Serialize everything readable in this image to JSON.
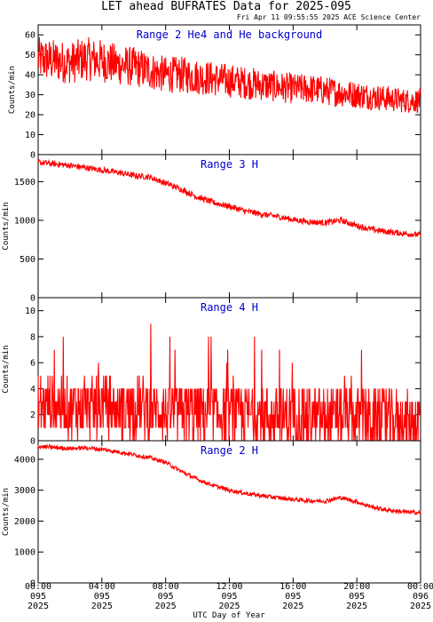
{
  "page": {
    "title": "LET ahead BUFRATES Data for 2025-095",
    "subtitle": "Fri Apr 11 09:55:55 2025 ACE Science Center",
    "xlabel": "UTC Day of Year"
  },
  "colors": {
    "line": "#ff0000",
    "panel_title": "#0000cc",
    "axis": "#000000"
  },
  "x_ticks": [
    {
      "time": "00:00",
      "doy": "095",
      "year": "2025",
      "hour": 0
    },
    {
      "time": "04:00",
      "doy": "095",
      "year": "2025",
      "hour": 4
    },
    {
      "time": "08:00",
      "doy": "095",
      "year": "2025",
      "hour": 8
    },
    {
      "time": "12:00",
      "doy": "095",
      "year": "2025",
      "hour": 12
    },
    {
      "time": "16:00",
      "doy": "095",
      "year": "2025",
      "hour": 16
    },
    {
      "time": "20:00",
      "doy": "095",
      "year": "2025",
      "hour": 20
    },
    {
      "time": "00:00",
      "doy": "096",
      "year": "2025",
      "hour": 24
    }
  ],
  "chart_data": [
    {
      "type": "line",
      "title": "Range 2 He4 and He background",
      "ylabel": "Counts/min",
      "ylim": [
        0,
        65
      ],
      "yticks": [
        0,
        10,
        20,
        30,
        40,
        50,
        60
      ],
      "x": [
        0,
        1,
        2,
        3,
        4,
        5,
        6,
        7,
        8,
        9,
        10,
        11,
        12,
        13,
        14,
        15,
        16,
        17,
        18,
        19,
        20,
        21,
        22,
        23,
        24
      ],
      "series": [
        {
          "values": [
            48,
            47,
            46,
            48,
            47,
            45,
            44,
            42,
            40,
            40,
            39,
            38,
            37,
            36,
            35,
            34,
            33,
            33,
            32,
            31,
            30,
            29,
            28,
            27,
            27
          ]
        }
      ]
    },
    {
      "type": "line",
      "title": "Range 3 H",
      "ylabel": "Counts/min",
      "ylim": [
        0,
        1850
      ],
      "yticks": [
        0,
        500,
        1000,
        1500
      ],
      "x": [
        0,
        1,
        2,
        3,
        4,
        5,
        6,
        7,
        8,
        9,
        10,
        11,
        12,
        13,
        14,
        15,
        16,
        17,
        18,
        19,
        20,
        21,
        22,
        23,
        24
      ],
      "series": [
        {
          "values": [
            1750,
            1730,
            1710,
            1680,
            1650,
            1620,
            1580,
            1560,
            1480,
            1400,
            1300,
            1230,
            1180,
            1120,
            1080,
            1050,
            1010,
            980,
            970,
            1000,
            930,
            880,
            850,
            830,
            810
          ]
        }
      ]
    },
    {
      "type": "line",
      "title": "Range 4 H",
      "ylabel": "Counts/min",
      "ylim": [
        0,
        11
      ],
      "yticks": [
        0,
        2,
        4,
        6,
        8,
        10
      ],
      "x": [
        0,
        1,
        2,
        3,
        4,
        5,
        6,
        7,
        8,
        9,
        10,
        11,
        12,
        13,
        14,
        15,
        16,
        17,
        18,
        19,
        20,
        21,
        22,
        23,
        24
      ],
      "series": [
        {
          "values": [
            2.8,
            2.7,
            2.6,
            2.5,
            2.6,
            2.4,
            2.5,
            2.4,
            2.3,
            2.2,
            2.2,
            2.1,
            2.0,
            2.0,
            1.9,
            1.9,
            1.8,
            1.8,
            1.7,
            1.8,
            1.7,
            1.6,
            1.6,
            1.5,
            1.5
          ]
        }
      ]
    },
    {
      "type": "line",
      "title": "Range 2 H",
      "ylabel": "Counts/min",
      "ylim": [
        0,
        4600
      ],
      "yticks": [
        0,
        1000,
        2000,
        3000,
        4000
      ],
      "x": [
        0,
        1,
        2,
        3,
        4,
        5,
        6,
        7,
        8,
        9,
        10,
        11,
        12,
        13,
        14,
        15,
        16,
        17,
        18,
        19,
        20,
        21,
        22,
        23,
        24
      ],
      "series": [
        {
          "values": [
            4420,
            4380,
            4350,
            4370,
            4320,
            4240,
            4150,
            4050,
            3900,
            3600,
            3350,
            3150,
            3000,
            2900,
            2820,
            2760,
            2700,
            2660,
            2650,
            2760,
            2620,
            2450,
            2350,
            2300,
            2270
          ]
        }
      ]
    }
  ]
}
